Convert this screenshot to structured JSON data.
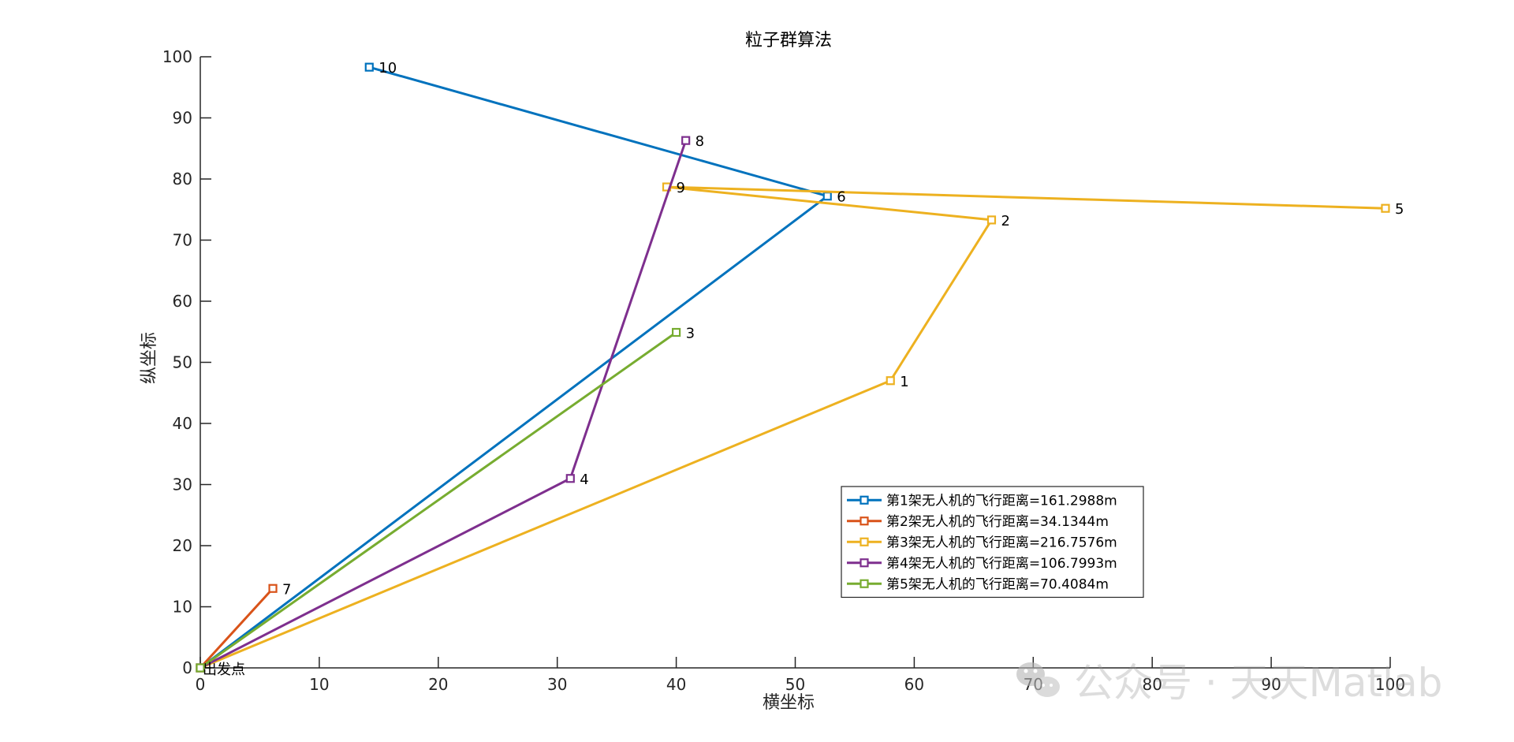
{
  "chart_data": {
    "type": "line",
    "title": "粒子群算法",
    "xlabel": "横坐标",
    "ylabel": "纵坐标",
    "xlim": [
      0,
      100
    ],
    "ylim": [
      0,
      100
    ],
    "xticks": [
      0,
      10,
      20,
      30,
      40,
      50,
      60,
      70,
      80,
      90,
      100
    ],
    "yticks": [
      0,
      10,
      20,
      30,
      40,
      50,
      60,
      70,
      80,
      90,
      100
    ],
    "grid": false,
    "legend_location": "lower-right",
    "depot": {
      "label": "出发点",
      "x": 0,
      "y": 0
    },
    "series": [
      {
        "name": "第1架无人机的飞行距离=161.2988m",
        "color": "#0072BD",
        "points": [
          {
            "x": 0,
            "y": 0,
            "label": ""
          },
          {
            "x": 52.7,
            "y": 77.2,
            "label": "6"
          },
          {
            "x": 14.2,
            "y": 98.3,
            "label": "10"
          }
        ]
      },
      {
        "name": "第2架无人机的飞行距离=34.1344m",
        "color": "#D95319",
        "points": [
          {
            "x": 0,
            "y": 0,
            "label": ""
          },
          {
            "x": 6.1,
            "y": 13.0,
            "label": "7"
          }
        ]
      },
      {
        "name": "第3架无人机的飞行距离=216.7576m",
        "color": "#EDB120",
        "points": [
          {
            "x": 0,
            "y": 0,
            "label": ""
          },
          {
            "x": 58.0,
            "y": 47.0,
            "label": "1"
          },
          {
            "x": 66.5,
            "y": 73.3,
            "label": "2"
          },
          {
            "x": 39.2,
            "y": 78.7,
            "label": "9"
          },
          {
            "x": 99.6,
            "y": 75.2,
            "label": "5"
          }
        ]
      },
      {
        "name": "第4架无人机的飞行距离=106.7993m",
        "color": "#7E2F8E",
        "points": [
          {
            "x": 0,
            "y": 0,
            "label": ""
          },
          {
            "x": 31.1,
            "y": 31.0,
            "label": "4"
          },
          {
            "x": 40.8,
            "y": 86.3,
            "label": "8"
          }
        ]
      },
      {
        "name": "第5架无人机的飞行距离=70.4084m",
        "color": "#77AC30",
        "points": [
          {
            "x": 0,
            "y": 0,
            "label": ""
          },
          {
            "x": 40.0,
            "y": 54.9,
            "label": "3"
          }
        ]
      }
    ]
  },
  "watermark": {
    "text": "公众号 · 天天Matlab",
    "icon": "wechat-icon"
  }
}
